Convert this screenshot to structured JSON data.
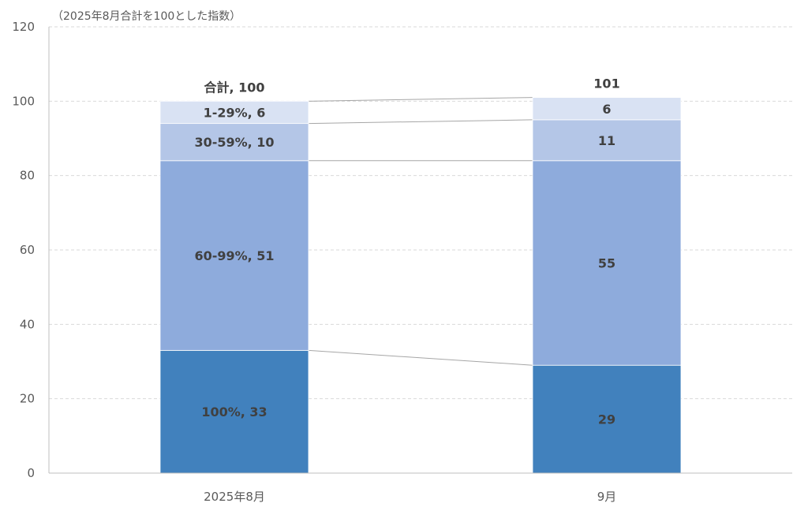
{
  "chart_data": {
    "type": "bar",
    "stacked": true,
    "title": "",
    "subtitle": "（2025年8月合計を100とした指数）",
    "xlabel": "",
    "ylabel": "",
    "ylim": [
      0,
      120
    ],
    "yticks": [
      0,
      20,
      40,
      60,
      80,
      100,
      120
    ],
    "grid": true,
    "categories": [
      "2025年8月",
      "9月"
    ],
    "series": [
      {
        "name": "100%",
        "values": [
          33,
          29
        ],
        "color": "#4181BD",
        "labels": [
          "100%, 33",
          "29"
        ]
      },
      {
        "name": "60-99%",
        "values": [
          51,
          55
        ],
        "color": "#8EABDC",
        "labels": [
          "60-99%, 51",
          "55"
        ]
      },
      {
        "name": "30-59%",
        "values": [
          10,
          11
        ],
        "color": "#B4C6E7",
        "labels": [
          "30-59%, 10",
          "11"
        ]
      },
      {
        "name": "1-29%",
        "values": [
          6,
          6
        ],
        "color": "#D9E2F3",
        "labels": [
          "1-29%, 6",
          "6"
        ]
      }
    ],
    "totals": [
      100,
      101
    ],
    "total_labels": [
      "合計, 100",
      "101"
    ],
    "series_lines": true
  }
}
